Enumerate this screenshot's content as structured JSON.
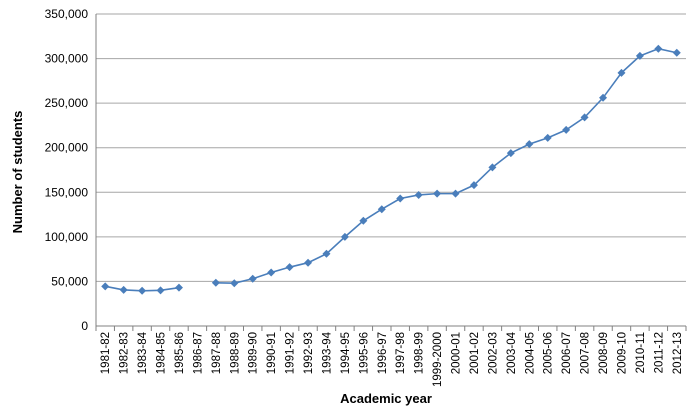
{
  "chart_data": {
    "type": "line",
    "xlabel": "Academic year",
    "ylabel": "Number of students",
    "ylim": [
      0,
      350000
    ],
    "yticks": [
      0,
      50000,
      100000,
      150000,
      200000,
      250000,
      300000,
      350000
    ],
    "ytick_labels": [
      "0",
      "50,000",
      "100,000",
      "150,000",
      "200,000",
      "250,000",
      "300,000",
      "350,000"
    ],
    "grid": true,
    "legend": "none",
    "series_color": "#4a7ebb",
    "categories": [
      "1981-82",
      "1982-83",
      "1983-84",
      "1984-85",
      "1985-86",
      "1986-87",
      "1987-88",
      "1988-89",
      "1989-90",
      "1990-91",
      "1991-92",
      "1992-93",
      "1993-94",
      "1994-95",
      "1995-96",
      "1996-97",
      "1997-98",
      "1998-99",
      "1999-2000",
      "2000-01",
      "2001-02",
      "2002-03",
      "2003-04",
      "2004-05",
      "2005-06",
      "2006-07",
      "2007-08",
      "2008-09",
      "2009-10",
      "2010-11",
      "2011-12",
      "2012-13"
    ],
    "series": [
      {
        "values": [
          44500,
          40500,
          39500,
          40000,
          43000,
          null,
          48500,
          48000,
          53000,
          60000,
          66000,
          71000,
          81000,
          100000,
          118000,
          131000,
          143000,
          147000,
          148500,
          148500,
          158000,
          178000,
          194000,
          204000,
          211000,
          220000,
          234000,
          256000,
          284000,
          303000,
          311000,
          306500
        ]
      }
    ]
  }
}
